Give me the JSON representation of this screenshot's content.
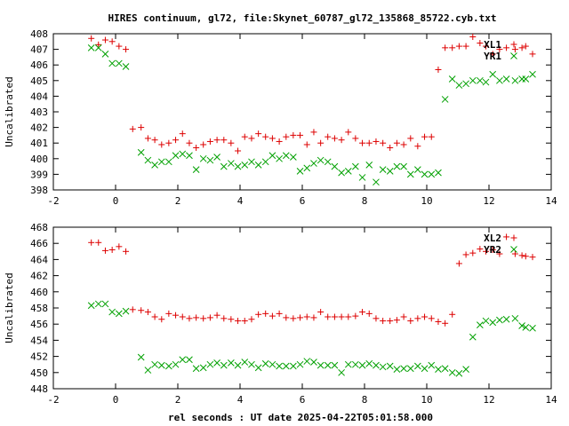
{
  "figure": {
    "title": "HIRES continuum, gl72, file:Skynet_60787_gl72_135868_85722.cyb.txt",
    "xlabel": "rel seconds : UT date 2025-04-22T05:01:58.000"
  },
  "colors": {
    "red": "#dd0000",
    "green": "#00a000",
    "axis": "#000000"
  },
  "chart_data": [
    {
      "type": "scatter",
      "ylabel": "Uncalibrated",
      "xlim": [
        -2,
        14
      ],
      "ylim": [
        398,
        408
      ],
      "xticks": [
        -2,
        0,
        2,
        4,
        6,
        8,
        10,
        12,
        14
      ],
      "yticks": [
        398,
        399,
        400,
        401,
        402,
        403,
        404,
        405,
        406,
        407,
        408
      ],
      "legend_position": "top-right",
      "grid": false,
      "series": [
        {
          "name": "XL1",
          "marker": "plus",
          "color": "#dd0000",
          "x": [
            -0.78,
            -0.55,
            -0.33,
            -0.11,
            0.11,
            0.33,
            0.55,
            0.82,
            1.04,
            1.26,
            1.48,
            1.71,
            1.93,
            2.15,
            2.37,
            2.59,
            2.82,
            3.04,
            3.26,
            3.48,
            3.71,
            3.93,
            4.15,
            4.37,
            4.59,
            4.82,
            5.04,
            5.26,
            5.48,
            5.71,
            5.93,
            6.15,
            6.37,
            6.59,
            6.82,
            7.04,
            7.26,
            7.48,
            7.71,
            7.93,
            8.15,
            8.37,
            8.59,
            8.82,
            9.04,
            9.26,
            9.48,
            9.71,
            9.93,
            10.15,
            10.37,
            10.59,
            10.82,
            11.04,
            11.26,
            11.48,
            11.71,
            11.9,
            12.12,
            12.34,
            12.56,
            12.84,
            13.06,
            13.18,
            13.4
          ],
          "y": [
            407.7,
            407.3,
            407.6,
            407.5,
            407.2,
            407.0,
            401.9,
            402.0,
            401.3,
            401.2,
            400.9,
            401.0,
            401.2,
            401.6,
            401.0,
            400.7,
            400.9,
            401.1,
            401.2,
            401.2,
            401.0,
            400.5,
            401.4,
            401.3,
            401.6,
            401.4,
            401.3,
            401.1,
            401.4,
            401.5,
            401.5,
            400.9,
            401.7,
            401.0,
            401.4,
            401.3,
            401.2,
            401.7,
            401.3,
            401.0,
            401.0,
            401.1,
            401.0,
            400.7,
            401.0,
            400.9,
            401.3,
            400.8,
            401.4,
            401.4,
            405.7,
            407.1,
            407.1,
            407.2,
            407.2,
            407.8,
            407.4,
            407.2,
            406.7,
            407.0,
            407.1,
            407.0,
            407.1,
            407.2,
            406.7
          ]
        },
        {
          "name": "YR1",
          "marker": "cross",
          "color": "#00a000",
          "x": [
            -0.78,
            -0.55,
            -0.33,
            -0.11,
            0.11,
            0.33,
            0.82,
            1.04,
            1.26,
            1.48,
            1.71,
            1.93,
            2.15,
            2.37,
            2.59,
            2.82,
            3.04,
            3.26,
            3.48,
            3.71,
            3.93,
            4.15,
            4.37,
            4.59,
            4.82,
            5.04,
            5.26,
            5.48,
            5.71,
            5.93,
            6.15,
            6.37,
            6.59,
            6.82,
            7.04,
            7.26,
            7.48,
            7.71,
            7.93,
            8.15,
            8.37,
            8.59,
            8.82,
            9.04,
            9.26,
            9.48,
            9.71,
            9.93,
            10.15,
            10.37,
            10.59,
            10.82,
            11.04,
            11.26,
            11.48,
            11.71,
            11.9,
            12.12,
            12.34,
            12.56,
            12.84,
            13.06,
            13.18,
            13.4
          ],
          "y": [
            407.1,
            407.1,
            406.7,
            406.1,
            406.1,
            405.9,
            400.4,
            399.9,
            399.6,
            399.8,
            399.8,
            400.2,
            400.3,
            400.2,
            399.3,
            400.0,
            399.9,
            400.1,
            399.5,
            399.7,
            399.5,
            399.6,
            399.8,
            399.6,
            399.8,
            400.2,
            400.0,
            400.2,
            400.1,
            399.2,
            399.4,
            399.7,
            399.9,
            399.8,
            399.5,
            399.1,
            399.2,
            399.5,
            398.8,
            399.6,
            398.5,
            399.3,
            399.2,
            399.5,
            399.5,
            399.0,
            399.3,
            399.0,
            399.0,
            399.1,
            403.8,
            405.1,
            404.7,
            404.8,
            405.0,
            405.0,
            404.9,
            405.4,
            405.0,
            405.1,
            405.0,
            405.1,
            405.1,
            405.4
          ]
        }
      ]
    },
    {
      "type": "scatter",
      "ylabel": "Uncalibrated",
      "xlim": [
        -2,
        14
      ],
      "ylim": [
        448,
        468
      ],
      "xticks": [
        -2,
        0,
        2,
        4,
        6,
        8,
        10,
        12,
        14
      ],
      "yticks": [
        448,
        450,
        452,
        454,
        456,
        458,
        460,
        462,
        464,
        466,
        468
      ],
      "legend_position": "top-right",
      "grid": false,
      "series": [
        {
          "name": "XL2",
          "marker": "plus",
          "color": "#dd0000",
          "x": [
            -0.78,
            -0.55,
            -0.33,
            -0.11,
            0.11,
            0.33,
            0.55,
            0.82,
            1.04,
            1.26,
            1.48,
            1.71,
            1.93,
            2.15,
            2.37,
            2.59,
            2.82,
            3.04,
            3.26,
            3.48,
            3.71,
            3.93,
            4.15,
            4.37,
            4.59,
            4.82,
            5.04,
            5.26,
            5.48,
            5.71,
            5.93,
            6.15,
            6.37,
            6.59,
            6.82,
            7.04,
            7.26,
            7.48,
            7.71,
            7.93,
            8.15,
            8.37,
            8.59,
            8.82,
            9.04,
            9.26,
            9.48,
            9.71,
            9.93,
            10.15,
            10.37,
            10.59,
            10.82,
            11.04,
            11.26,
            11.48,
            11.71,
            11.9,
            12.12,
            12.34,
            12.56,
            12.84,
            13.06,
            13.18,
            13.4
          ],
          "y": [
            466.1,
            466.1,
            465.1,
            465.2,
            465.6,
            465.0,
            457.8,
            457.7,
            457.5,
            456.9,
            456.6,
            457.3,
            457.1,
            456.9,
            456.7,
            456.8,
            456.7,
            456.8,
            457.1,
            456.7,
            456.6,
            456.4,
            456.4,
            456.6,
            457.2,
            457.3,
            457.0,
            457.3,
            456.8,
            456.7,
            456.8,
            456.9,
            456.8,
            457.5,
            456.9,
            456.9,
            456.9,
            456.9,
            457.0,
            457.5,
            457.3,
            456.7,
            456.4,
            456.4,
            456.5,
            456.9,
            456.4,
            456.7,
            456.9,
            456.7,
            456.3,
            456.1,
            457.2,
            463.5,
            464.6,
            464.8,
            465.3,
            465.0,
            465.2,
            464.7,
            466.8,
            464.7,
            464.5,
            464.4,
            464.3
          ]
        },
        {
          "name": "YR2",
          "marker": "cross",
          "color": "#00a000",
          "x": [
            -0.78,
            -0.55,
            -0.33,
            -0.11,
            0.11,
            0.33,
            0.82,
            1.04,
            1.26,
            1.48,
            1.71,
            1.93,
            2.15,
            2.37,
            2.59,
            2.82,
            3.04,
            3.26,
            3.48,
            3.71,
            3.93,
            4.15,
            4.37,
            4.59,
            4.82,
            5.04,
            5.26,
            5.48,
            5.71,
            5.93,
            6.15,
            6.37,
            6.59,
            6.82,
            7.04,
            7.26,
            7.48,
            7.71,
            7.93,
            8.15,
            8.37,
            8.59,
            8.82,
            9.04,
            9.26,
            9.48,
            9.71,
            9.93,
            10.15,
            10.37,
            10.59,
            10.82,
            11.04,
            11.26,
            11.48,
            11.71,
            11.9,
            12.12,
            12.34,
            12.56,
            12.84,
            13.06,
            13.18,
            13.4
          ],
          "y": [
            458.3,
            458.5,
            458.5,
            457.5,
            457.3,
            457.6,
            451.9,
            450.3,
            451.0,
            450.9,
            450.8,
            451.0,
            451.6,
            451.6,
            450.5,
            450.6,
            451.0,
            451.2,
            450.9,
            451.2,
            450.9,
            451.3,
            451.0,
            450.6,
            451.1,
            451.0,
            450.8,
            450.8,
            450.8,
            451.0,
            451.4,
            451.3,
            450.9,
            450.9,
            450.9,
            450.0,
            451.0,
            451.0,
            450.9,
            451.1,
            450.9,
            450.7,
            450.8,
            450.4,
            450.5,
            450.5,
            450.8,
            450.5,
            450.9,
            450.4,
            450.5,
            450.0,
            449.9,
            450.4,
            454.4,
            455.9,
            456.4,
            456.2,
            456.5,
            456.6,
            456.7,
            455.8,
            455.6,
            455.5
          ]
        }
      ]
    }
  ]
}
